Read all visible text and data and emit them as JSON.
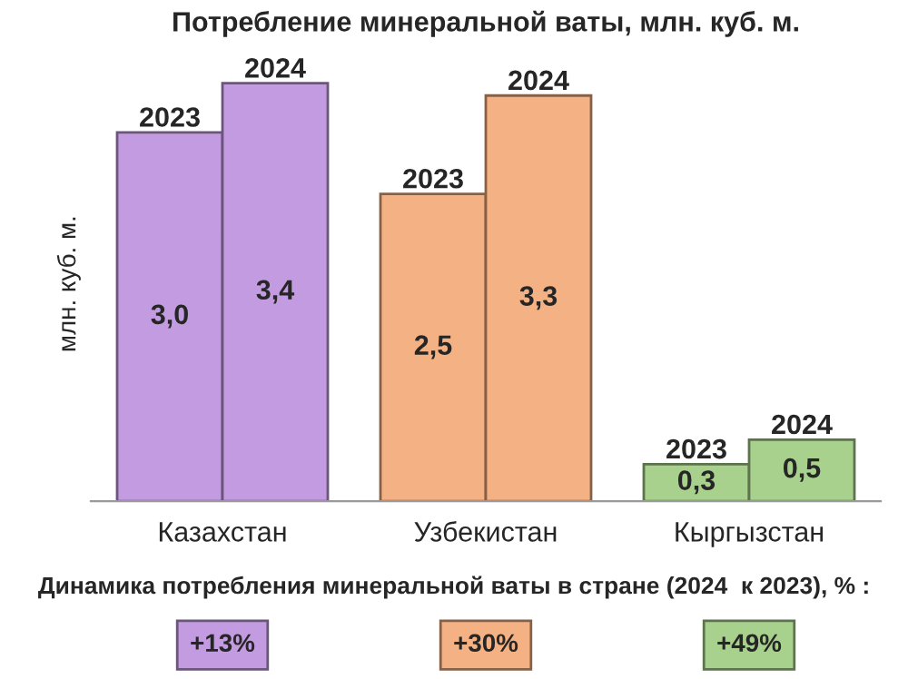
{
  "chart_data": {
    "type": "bar",
    "title": "Потребление минеральной ваты, млн. куб. м.",
    "ylabel": "млн. куб. м.",
    "categories": [
      "Казахстан",
      "Узбекистан",
      "Кыргызстан"
    ],
    "series": [
      {
        "name": "2023",
        "colors": [
          "#c39be0",
          "#f4b183",
          "#a9d18e"
        ],
        "values": [
          3.0,
          2.5,
          0.3
        ],
        "value_labels": [
          "3,0",
          "2,5",
          "0,3"
        ]
      },
      {
        "name": "2024",
        "colors": [
          "#c39be0",
          "#f4b183",
          "#a9d18e"
        ],
        "values": [
          3.4,
          3.3,
          0.5
        ],
        "value_labels": [
          "3,4",
          "3,3",
          "0,5"
        ]
      }
    ],
    "annotations": [
      "Динамика потребления минеральной ваты в стране (2024  к 2023), % :",
      "+13%",
      "+30%",
      "+49%"
    ],
    "legend": false,
    "grid": false
  }
}
